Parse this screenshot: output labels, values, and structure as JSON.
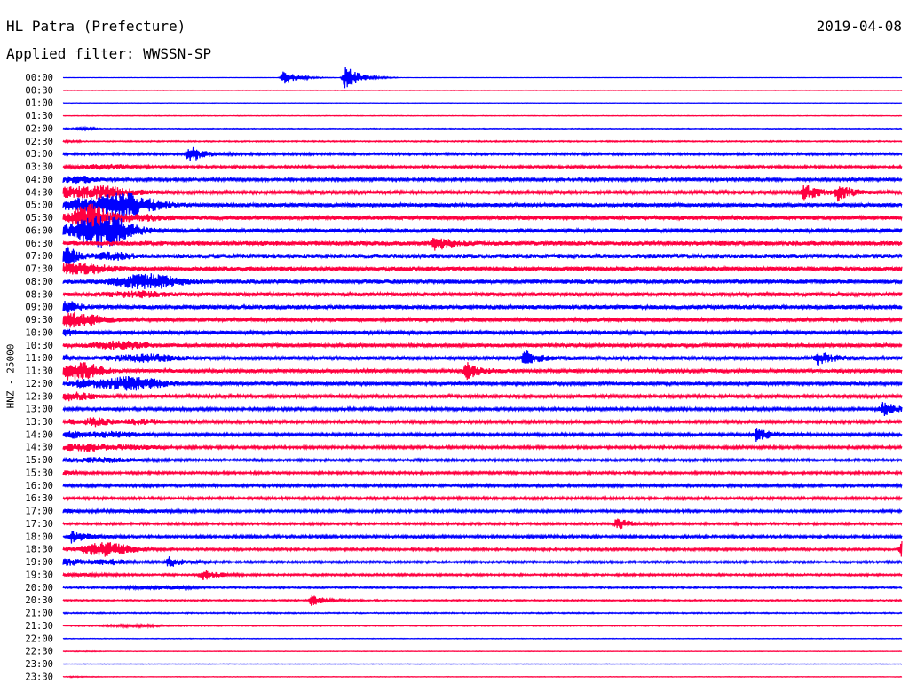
{
  "header": {
    "station": "HL Patra (Prefecture)",
    "date": "2019-04-08",
    "filter": "Applied filter: WWSSN-SP"
  },
  "chart_data": {
    "type": "line",
    "title": "HL Patra (Prefecture)",
    "ylabel": "HNZ - 25000",
    "colors": [
      "#0000ff",
      "#ff0040"
    ],
    "categories": [
      "00:00",
      "00:30",
      "01:00",
      "01:30",
      "02:00",
      "02:30",
      "03:00",
      "03:30",
      "04:00",
      "04:30",
      "05:00",
      "05:30",
      "06:00",
      "06:30",
      "07:00",
      "07:30",
      "08:00",
      "08:30",
      "09:00",
      "09:30",
      "10:00",
      "10:30",
      "11:00",
      "11:30",
      "12:00",
      "12:30",
      "13:00",
      "13:30",
      "14:00",
      "14:30",
      "15:00",
      "15:30",
      "16:00",
      "16:30",
      "17:00",
      "17:30",
      "18:00",
      "18:30",
      "19:00",
      "19:30",
      "20:00",
      "20:30",
      "21:00",
      "21:30",
      "22:00",
      "22:30",
      "23:00",
      "23:30"
    ],
    "noise_level": [
      0.3,
      0.5,
      0.35,
      0.6,
      0.8,
      1.2,
      2.2,
      2.2,
      3.0,
      3.2,
      4.0,
      4.2,
      4.4,
      4.6,
      4.6,
      4.4,
      4.2,
      4.0,
      4.4,
      4.0,
      3.8,
      3.8,
      3.8,
      3.6,
      3.6,
      3.2,
      3.0,
      3.0,
      2.8,
      2.6,
      2.4,
      2.4,
      2.6,
      2.6,
      2.4,
      2.2,
      2.6,
      2.4,
      2.2,
      2.0,
      1.6,
      1.4,
      1.2,
      1.0,
      0.6,
      0.5,
      0.5,
      0.5
    ],
    "events": [
      {
        "row": 0,
        "minute": 7.9,
        "amplitude": 8
      },
      {
        "row": 0,
        "minute": 10.1,
        "amplitude": 14
      },
      {
        "row": 6,
        "minute": 4.5,
        "amplitude": 10
      },
      {
        "row": 9,
        "minute": 26.5,
        "amplitude": 9
      },
      {
        "row": 9,
        "minute": 27.7,
        "amplitude": 8
      },
      {
        "row": 13,
        "minute": 13.3,
        "amplitude": 8
      },
      {
        "row": 23,
        "minute": 14.4,
        "amplitude": 9
      },
      {
        "row": 22,
        "minute": 16.5,
        "amplitude": 8
      },
      {
        "row": 22,
        "minute": 27.0,
        "amplitude": 7
      },
      {
        "row": 26,
        "minute": 29.3,
        "amplitude": 8
      },
      {
        "row": 28,
        "minute": 24.8,
        "amplitude": 7
      },
      {
        "row": 35,
        "minute": 19.8,
        "amplitude": 6
      },
      {
        "row": 36,
        "minute": 0.3,
        "amplitude": 7
      },
      {
        "row": 37,
        "minute": 30.0,
        "amplitude": 12
      },
      {
        "row": 38,
        "minute": 3.8,
        "amplitude": 6
      },
      {
        "row": 39,
        "minute": 5.0,
        "amplitude": 6
      },
      {
        "row": 41,
        "minute": 8.9,
        "amplitude": 6
      }
    ]
  }
}
